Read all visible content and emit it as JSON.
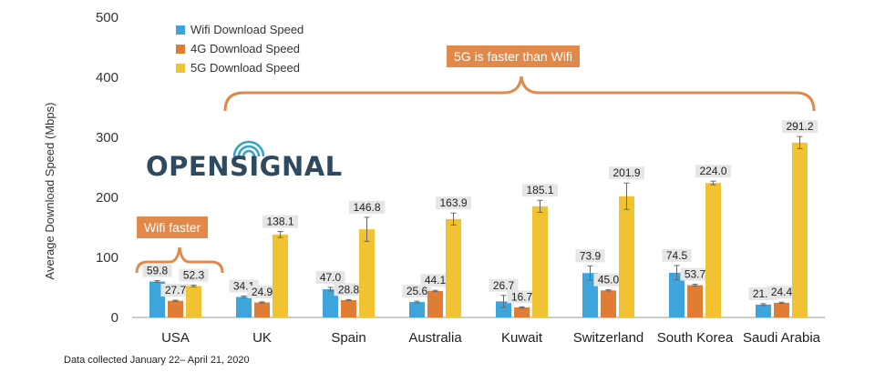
{
  "chart_data": {
    "type": "bar",
    "ylabel": "Average Download Speed (Mbps)",
    "ylim": [
      0,
      500
    ],
    "yticks": [
      0,
      100,
      200,
      300,
      400,
      500
    ],
    "categories": [
      "USA",
      "UK",
      "Spain",
      "Australia",
      "Kuwait",
      "Switzerland",
      "South Korea",
      "Saudi Arabia"
    ],
    "series": [
      {
        "name": "Wifi Download Speed",
        "color": "#3ea5dc",
        "values": [
          59.8,
          34.1,
          47.0,
          25.6,
          26.7,
          73.9,
          74.5,
          21.4
        ],
        "labels": [
          "59.8",
          "34.1",
          "47.0",
          "25.6",
          "26.7",
          "73.9",
          "74.5",
          "21.4"
        ],
        "errors": [
          1.5,
          1.5,
          3,
          1.5,
          10,
          12,
          12,
          1.5
        ]
      },
      {
        "name": "4G Download Speed",
        "color": "#e07c33",
        "values": [
          27.7,
          24.9,
          28.8,
          44.1,
          16.7,
          45.0,
          53.7,
          24.4
        ],
        "labels": [
          "27.7",
          "24.9",
          "28.8",
          "44.1",
          "16.7",
          "45.0",
          "53.7",
          "24.4"
        ],
        "errors": [
          1,
          1,
          1,
          1,
          1,
          1,
          1.5,
          1
        ]
      },
      {
        "name": "5G Download Speed",
        "color": "#f1c232",
        "values": [
          52.3,
          138.1,
          146.8,
          163.9,
          185.1,
          201.9,
          224.0,
          291.2
        ],
        "labels": [
          "52.3",
          "138.1",
          "146.8",
          "163.9",
          "185.1",
          "201.9",
          "224.0",
          "291.2"
        ],
        "errors": [
          1.5,
          5,
          20,
          10,
          10,
          22,
          3,
          10
        ]
      }
    ],
    "legend_position": "top-left",
    "grid": false,
    "annotations": [
      "5G is faster than Wifi",
      "Wifi faster"
    ]
  },
  "logo": "OPENSIGNAL",
  "footnote": "Data collected January 22– April 21, 2020"
}
